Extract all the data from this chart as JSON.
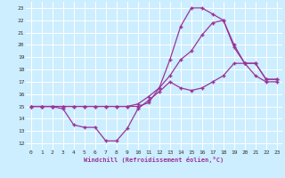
{
  "xlabel": "Windchill (Refroidissement éolien,°C)",
  "bg_color": "#cceeff",
  "grid_color": "#ffffff",
  "line_color": "#993399",
  "xlim": [
    -0.5,
    23.5
  ],
  "ylim": [
    11.5,
    23.5
  ],
  "xticks": [
    0,
    1,
    2,
    3,
    4,
    5,
    6,
    7,
    8,
    9,
    10,
    11,
    12,
    13,
    14,
    15,
    16,
    17,
    18,
    19,
    20,
    21,
    22,
    23
  ],
  "yticks": [
    12,
    13,
    14,
    15,
    16,
    17,
    18,
    19,
    20,
    21,
    22,
    23
  ],
  "lines": [
    {
      "x": [
        0,
        1,
        2,
        3,
        4,
        5,
        6,
        7,
        8,
        9,
        10,
        11,
        12,
        13,
        14,
        15,
        16,
        17,
        18,
        19,
        20,
        21,
        22,
        23
      ],
      "y": [
        15,
        15,
        15,
        14.8,
        13.5,
        13.3,
        13.3,
        12.2,
        12.2,
        13.2,
        14.8,
        15.5,
        16.2,
        17.0,
        16.5,
        16.3,
        16.5,
        17.0,
        17.5,
        18.5,
        18.5,
        18.5,
        17.2,
        17.2
      ]
    },
    {
      "x": [
        0,
        1,
        2,
        3,
        4,
        5,
        6,
        7,
        8,
        9,
        10,
        11,
        12,
        13,
        14,
        15,
        16,
        17,
        18,
        19,
        20,
        21,
        22,
        23
      ],
      "y": [
        15,
        15,
        15,
        15,
        15,
        15,
        15,
        15,
        15,
        15,
        15,
        15.3,
        16.5,
        18.8,
        21.5,
        23,
        23,
        22.5,
        22.0,
        19.8,
        18.5,
        18.5,
        17.2,
        17.2
      ]
    },
    {
      "x": [
        0,
        1,
        2,
        3,
        4,
        5,
        6,
        7,
        8,
        9,
        10,
        11,
        12,
        13,
        14,
        15,
        16,
        17,
        18,
        19,
        20,
        21,
        22,
        23
      ],
      "y": [
        15,
        15,
        15,
        15,
        15,
        15,
        15,
        15,
        15,
        15,
        15.2,
        15.8,
        16.5,
        17.5,
        18.8,
        19.5,
        20.8,
        21.8,
        22.0,
        20.0,
        18.5,
        17.5,
        17.0,
        17.0
      ]
    }
  ]
}
